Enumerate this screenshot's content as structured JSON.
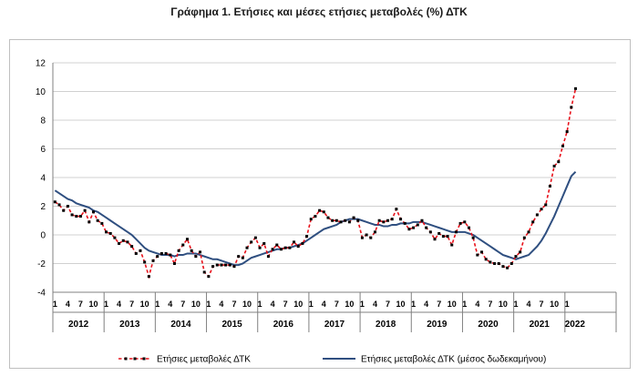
{
  "title": "Γράφημα 1. Ετήσιες και μέσες ετήσιες μεταβολές (%) ΔΤΚ",
  "chart_data": {
    "type": "line",
    "ylim": [
      -4,
      12
    ],
    "yticks": [
      -4,
      -2,
      0,
      2,
      4,
      6,
      8,
      10,
      12
    ],
    "grid": "horizontal",
    "legend_position": "bottom",
    "month_tick_labels": [
      "1",
      "4",
      "7",
      "10"
    ],
    "years": [
      "2012",
      "2013",
      "2014",
      "2015",
      "2016",
      "2017",
      "2018",
      "2019",
      "2020",
      "2021",
      "2022"
    ],
    "colors": {
      "annual": "#e8111a",
      "average": "#2f4f80",
      "marker": "#000000",
      "grid": "#d0d0d0"
    },
    "series": [
      {
        "name": "Ετήσιες μεταβολές ΔΤΚ",
        "style": "dashed-with-markers",
        "values": [
          2.3,
          2.1,
          1.7,
          2.0,
          1.4,
          1.3,
          1.3,
          1.7,
          0.9,
          1.6,
          1.0,
          0.8,
          0.2,
          0.1,
          -0.2,
          -0.6,
          -0.4,
          -0.5,
          -0.8,
          -1.3,
          -1.1,
          -1.9,
          -2.9,
          -1.8,
          -1.5,
          -1.3,
          -1.3,
          -1.4,
          -2.0,
          -1.1,
          -0.7,
          -0.3,
          -1.1,
          -1.5,
          -1.2,
          -2.6,
          -2.9,
          -2.2,
          -2.1,
          -2.1,
          -2.1,
          -2.1,
          -2.2,
          -1.5,
          -1.6,
          -0.9,
          -0.5,
          -0.2,
          -0.9,
          -0.6,
          -1.5,
          -1.0,
          -0.7,
          -1.0,
          -0.9,
          -0.9,
          -0.5,
          -0.8,
          -0.6,
          -0.1,
          1.1,
          1.3,
          1.7,
          1.6,
          1.2,
          1.0,
          1.0,
          0.9,
          1.0,
          0.9,
          1.2,
          1.0,
          -0.2,
          0.0,
          -0.2,
          0.2,
          1.0,
          0.9,
          1.0,
          1.1,
          1.8,
          1.1,
          0.8,
          0.4,
          0.5,
          0.7,
          1.0,
          0.5,
          0.2,
          -0.3,
          0.1,
          -0.1,
          -0.1,
          -0.7,
          0.2,
          0.8,
          0.9,
          0.5,
          -0.2,
          -1.4,
          -1.2,
          -1.7,
          -1.9,
          -2.0,
          -2.0,
          -2.2,
          -2.3,
          -2.0,
          -1.5,
          -1.2,
          -0.2,
          0.2,
          0.9,
          1.4,
          1.8,
          2.1,
          3.4,
          4.8,
          5.1,
          6.2,
          7.2,
          8.9,
          10.2
        ]
      },
      {
        "name": "Ετήσιες μεταβολές ΔΤΚ (μέσος δωδεκαμήνου)",
        "style": "solid",
        "values": [
          3.1,
          2.9,
          2.7,
          2.5,
          2.4,
          2.2,
          2.1,
          2.0,
          1.9,
          1.7,
          1.6,
          1.4,
          1.2,
          1.0,
          0.8,
          0.6,
          0.4,
          0.2,
          0.0,
          -0.3,
          -0.6,
          -0.9,
          -1.1,
          -1.2,
          -1.3,
          -1.4,
          -1.4,
          -1.4,
          -1.5,
          -1.4,
          -1.4,
          -1.3,
          -1.3,
          -1.3,
          -1.4,
          -1.5,
          -1.6,
          -1.7,
          -1.7,
          -1.8,
          -1.9,
          -2.0,
          -2.1,
          -2.1,
          -2.0,
          -1.8,
          -1.6,
          -1.5,
          -1.4,
          -1.3,
          -1.2,
          -1.1,
          -1.0,
          -1.0,
          -0.9,
          -0.9,
          -0.8,
          -0.7,
          -0.6,
          -0.4,
          -0.2,
          0.0,
          0.2,
          0.4,
          0.5,
          0.6,
          0.7,
          0.9,
          1.0,
          1.1,
          1.1,
          1.1,
          1.0,
          0.9,
          0.8,
          0.7,
          0.7,
          0.6,
          0.6,
          0.7,
          0.7,
          0.8,
          0.8,
          0.8,
          0.9,
          0.9,
          0.9,
          0.8,
          0.7,
          0.6,
          0.5,
          0.4,
          0.3,
          0.2,
          0.2,
          0.2,
          0.2,
          0.1,
          0.0,
          -0.2,
          -0.4,
          -0.6,
          -0.8,
          -1.0,
          -1.2,
          -1.4,
          -1.5,
          -1.6,
          -1.7,
          -1.6,
          -1.5,
          -1.4,
          -1.1,
          -0.8,
          -0.4,
          0.1,
          0.7,
          1.3,
          2.0,
          2.7,
          3.4,
          4.1,
          4.4
        ]
      }
    ]
  }
}
